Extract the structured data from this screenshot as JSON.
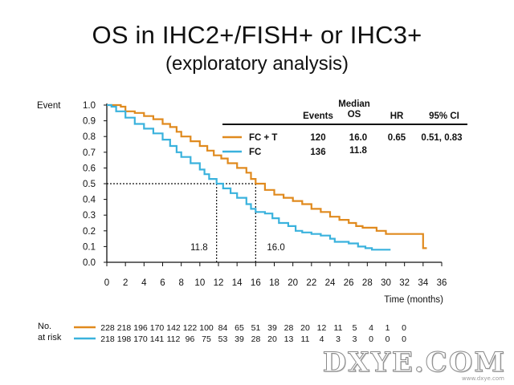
{
  "title": "OS in IHC2+/FISH+ or IHC3+",
  "subtitle": "(exploratory analysis)",
  "chart_data": {
    "type": "line",
    "ylabel": "Event",
    "xlabel": "Time (months)",
    "xlim": [
      0,
      36
    ],
    "ylim": [
      0,
      1
    ],
    "xticks": [
      "0",
      "2",
      "4",
      "6",
      "8",
      "10",
      "12",
      "14",
      "16",
      "18",
      "20",
      "22",
      "24",
      "26",
      "28",
      "30",
      "32",
      "34",
      "36"
    ],
    "yticks": [
      "0.0",
      "0.1",
      "0.2",
      "0.3",
      "0.4",
      "0.5",
      "0.6",
      "0.7",
      "0.8",
      "0.9",
      "1.0"
    ],
    "grid": false,
    "series": [
      {
        "name": "FC + T",
        "color": "#e08a1e",
        "points": [
          [
            0,
            1.0
          ],
          [
            0.8,
            1.0
          ],
          [
            1.5,
            0.99
          ],
          [
            2,
            0.96
          ],
          [
            3,
            0.95
          ],
          [
            4,
            0.93
          ],
          [
            5,
            0.91
          ],
          [
            6,
            0.88
          ],
          [
            6.8,
            0.86
          ],
          [
            7.5,
            0.83
          ],
          [
            8,
            0.8
          ],
          [
            9,
            0.77
          ],
          [
            10,
            0.74
          ],
          [
            10.8,
            0.71
          ],
          [
            11.5,
            0.68
          ],
          [
            12.3,
            0.66
          ],
          [
            13,
            0.63
          ],
          [
            14,
            0.6
          ],
          [
            15,
            0.57
          ],
          [
            15.5,
            0.53
          ],
          [
            16,
            0.5
          ],
          [
            17,
            0.46
          ],
          [
            18,
            0.43
          ],
          [
            19,
            0.41
          ],
          [
            20,
            0.39
          ],
          [
            21,
            0.37
          ],
          [
            22,
            0.34
          ],
          [
            23,
            0.32
          ],
          [
            24,
            0.29
          ],
          [
            25,
            0.27
          ],
          [
            26,
            0.25
          ],
          [
            26.8,
            0.23
          ],
          [
            27.5,
            0.22
          ],
          [
            29,
            0.2
          ],
          [
            30,
            0.18
          ],
          [
            31,
            0.18
          ],
          [
            33,
            0.18
          ],
          [
            33.8,
            0.18
          ],
          [
            34,
            0.09
          ],
          [
            34.4,
            0.09
          ]
        ]
      },
      {
        "name": "FC",
        "color": "#3ab2dd",
        "points": [
          [
            0,
            1.0
          ],
          [
            0.5,
            0.99
          ],
          [
            1,
            0.96
          ],
          [
            2,
            0.92
          ],
          [
            3,
            0.88
          ],
          [
            4,
            0.85
          ],
          [
            5,
            0.82
          ],
          [
            6,
            0.78
          ],
          [
            6.8,
            0.74
          ],
          [
            7.5,
            0.7
          ],
          [
            8,
            0.67
          ],
          [
            9,
            0.63
          ],
          [
            10,
            0.59
          ],
          [
            10.5,
            0.56
          ],
          [
            11,
            0.53
          ],
          [
            11.8,
            0.5
          ],
          [
            12.5,
            0.47
          ],
          [
            13.3,
            0.44
          ],
          [
            14,
            0.41
          ],
          [
            15,
            0.37
          ],
          [
            15.5,
            0.34
          ],
          [
            16,
            0.32
          ],
          [
            17,
            0.31
          ],
          [
            17.8,
            0.28
          ],
          [
            18.5,
            0.25
          ],
          [
            19.5,
            0.23
          ],
          [
            20.3,
            0.2
          ],
          [
            21,
            0.19
          ],
          [
            22,
            0.18
          ],
          [
            23,
            0.17
          ],
          [
            24,
            0.15
          ],
          [
            24.5,
            0.13
          ],
          [
            26,
            0.12
          ],
          [
            27,
            0.1
          ],
          [
            27.8,
            0.09
          ],
          [
            28.5,
            0.08
          ],
          [
            30,
            0.08
          ],
          [
            30.5,
            0.08
          ]
        ]
      }
    ],
    "reference_lines": {
      "median_y": 0.5,
      "median_x": [
        11.8,
        16.0
      ],
      "labels": [
        "11.8",
        "16.0"
      ]
    },
    "summary_table": {
      "headers": [
        "Events",
        "Median OS",
        "HR",
        "95% CI"
      ],
      "header_median_top": "Median",
      "header_median_bottom": "OS",
      "rows": [
        {
          "label": "FC + T",
          "events": "120",
          "median": "16.0",
          "hr": "0.65",
          "ci": "0.51, 0.83"
        },
        {
          "label": "FC",
          "events": "136",
          "median": "11.8",
          "hr": "",
          "ci": ""
        }
      ]
    },
    "risk_table": {
      "label_line1": "No.",
      "label_line2": "at risk",
      "fct": [
        "228",
        "218",
        "196",
        "170",
        "142",
        "122",
        "100",
        "84",
        "65",
        "51",
        "39",
        "28",
        "20",
        "12",
        "11",
        "5",
        "4",
        "1",
        "0"
      ],
      "fc": [
        "218",
        "198",
        "170",
        "141",
        "112",
        "96",
        "75",
        "53",
        "39",
        "28",
        "20",
        "13",
        "11",
        "4",
        "3",
        "3",
        "0",
        "0",
        "0"
      ]
    }
  },
  "watermark": "DXYE.COM",
  "watermark_sub": "www.dxye.com"
}
